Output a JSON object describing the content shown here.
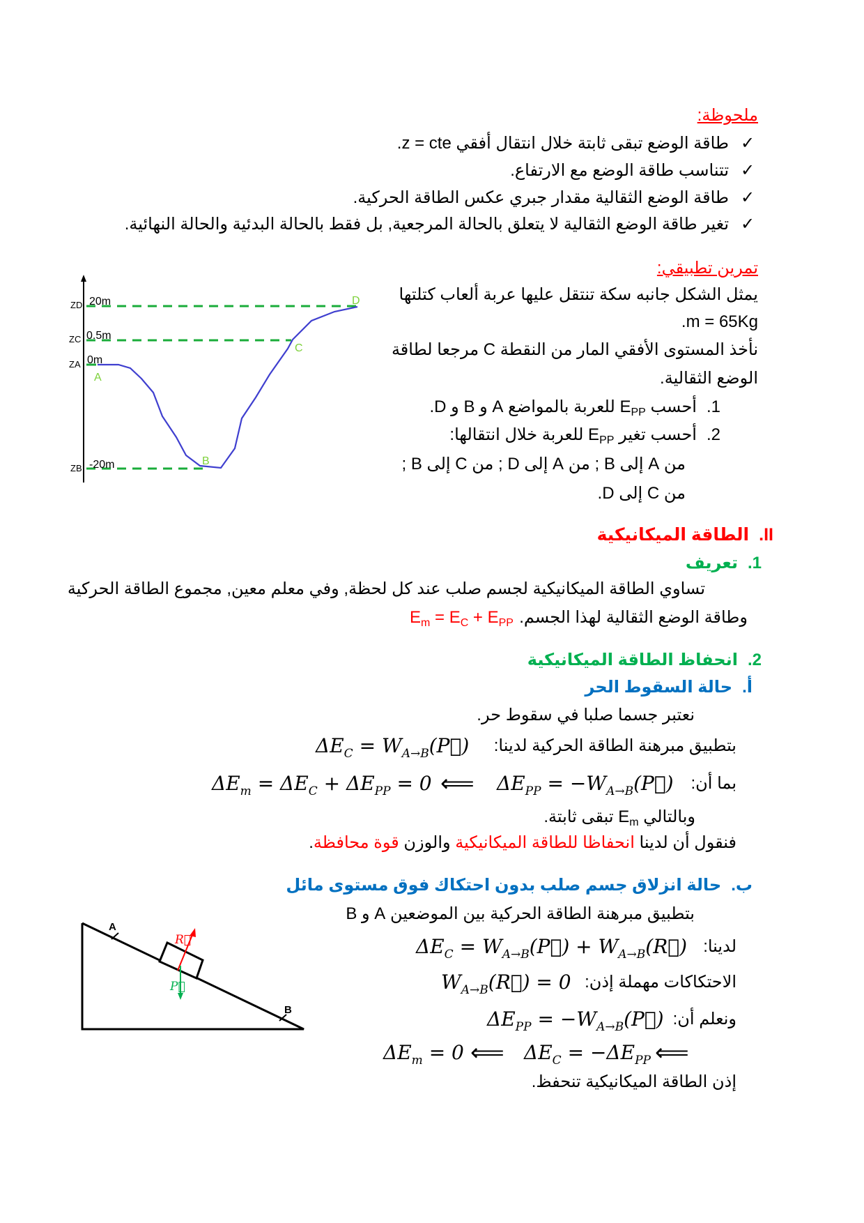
{
  "note": {
    "title": "ملحوظة:",
    "check_icon": "✓",
    "items": [
      "طاقة الوضع تبقى ثابتة خلال انتقال أفقي z = cte.",
      "تتناسب طاقة الوضع مع الارتفاع.",
      "طاقة الوضع الثقالية مقدار جبري عكس الطاقة الحركية.",
      "تغير طاقة الوضع الثقالية لا يتعلق بالحالة المرجعية, بل فقط بالحالة البدئية والحالة النهائية."
    ]
  },
  "exercise": {
    "title": "تمرين تطبيقي:",
    "lines": [
      "يمثل الشكل جانبه سكة تنتقل عليها عربة ألعاب كتلتها",
      "m = 65Kg.",
      "نأخذ المستوى الأفقي المار من النقطة C مرجعا لطاقة",
      "الوضع الثقالية.",
      "من A إلى B ; من A إلى D ; من C إلى B ;",
      "من C إلى D."
    ],
    "questions": [
      {
        "num": "1.",
        "text": "أحسب E_{PP} للعربة بالمواضع A و B و D."
      },
      {
        "num": "2.",
        "text": "أحسب تغير E_{PP} للعربة خلال انتقالها:"
      }
    ],
    "graph": {
      "axis_labels": {
        "zd": "ZD",
        "zc": "ZC",
        "za": "ZA",
        "zb": "ZB"
      },
      "values": {
        "zd": "20m",
        "zc": "0.5m",
        "za": "0m",
        "zb": "-20m"
      },
      "points": {
        "a": "A",
        "b": "B",
        "c": "C",
        "d": "D"
      },
      "colors": {
        "track": "#3f3fcf",
        "levels": "#1aac3a",
        "points": "#7dd13a"
      }
    }
  },
  "section2": {
    "num": "II.",
    "title": "الطاقة الميكانيكية",
    "def": {
      "num": "1.",
      "title": "تعريف",
      "line1": "تساوي الطاقة الميكانيكية لجسم صلب عند كل لحظة, وفي معلم معين, مجموع الطاقة الحركية",
      "line2": "وطاقة الوضع الثقالية لهذا الجسم.",
      "formula": "E_{m} = E_{C} + E_{PP}"
    },
    "conservation": {
      "num": "2.",
      "title": "انحفاظ الطاقة الميكانيكية",
      "free_fall": {
        "num": "أ.",
        "title": "حالة السقوط الحر",
        "l1": "نعتبر جسما صلبا في سقوط حر.",
        "l2": "بتطبيق مبرهنة الطاقة الحركية لدينا:",
        "eq1": "ΔE_{C} = W_{A→B}(P⃗)",
        "l3": "بما أن:",
        "eq2": "ΔE_{PP} = −W_{A→B}(P⃗)",
        "arrow": "⟸",
        "eq3": "ΔE_{m} = ΔE_{C} + ΔE_{PP} = 0",
        "l4": "وبالتالي E_{m} تبقى ثابتة.",
        "l5_a": "فنقول أن لدينا ",
        "l5_b": "انحفاظا للطاقة الميكانيكية",
        "l5_c": " والوزن ",
        "l5_d": "قوة محافظة",
        "l5_e": "."
      },
      "incline": {
        "num": "ب.",
        "title": "حالة انزلاق جسم صلب بدون احتكاك فوق مستوى مائل",
        "l1": "بتطبيق مبرهنة الطاقة الحركية بين الموضعين A و B",
        "l2": "لدينا:",
        "eq1": "ΔE_{C} = W_{A→B}(P⃗) + W_{A→B}(R⃗)",
        "l3": "الاحتكاكات مهملة إذن:",
        "eq2": "W_{A→B}(R⃗) = 0",
        "l4": "ونعلم أن:",
        "eq3": "ΔE_{PP} = −W_{A→B}(P⃗)",
        "eq4": "ΔE_{C} = −ΔE_{PP}",
        "eq5": "ΔE_{m} = 0",
        "arrow": "⟸",
        "l5": "إذن الطاقة الميكانيكية تنحفظ.",
        "diagram": {
          "a": "A",
          "b": "B",
          "r": "R⃗",
          "p": "P⃗",
          "r_color": "#ff0000",
          "p_color": "#00b050"
        }
      }
    }
  }
}
